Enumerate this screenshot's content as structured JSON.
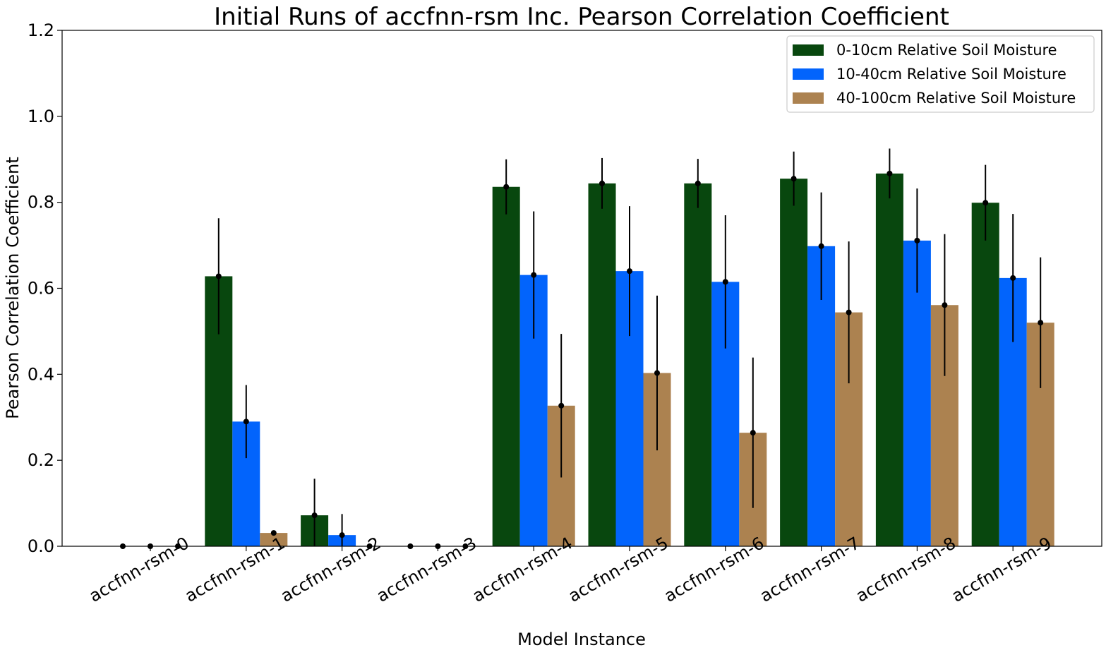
{
  "chart_data": {
    "type": "bar",
    "title": "Initial Runs of accfnn-rsm Inc. Pearson Correlation Coefficient",
    "xlabel": "Model Instance",
    "ylabel": "Pearson Correlation Coefficient",
    "ylim": [
      0,
      1.2
    ],
    "yticks": [
      "0.0",
      "0.2",
      "0.4",
      "0.6",
      "0.8",
      "1.0",
      "1.2"
    ],
    "categories": [
      "accfnn-rsm-0",
      "accfnn-rsm-1",
      "accfnn-rsm-2",
      "accfnn-rsm-3",
      "accfnn-rsm-4",
      "accfnn-rsm-5",
      "accfnn-rsm-6",
      "accfnn-rsm-7",
      "accfnn-rsm-8",
      "accfnn-rsm-9"
    ],
    "series": [
      {
        "name": "0-10cm Relative Soil Moisture",
        "color": "#08470e",
        "values": [
          0.0,
          0.628,
          0.072,
          0.0,
          0.836,
          0.844,
          0.844,
          0.855,
          0.867,
          0.799
        ],
        "errors": [
          0.0,
          0.135,
          0.085,
          0.0,
          0.064,
          0.059,
          0.057,
          0.063,
          0.058,
          0.088
        ]
      },
      {
        "name": "10-40cm Relative Soil Moisture",
        "color": "#0264fc",
        "values": [
          0.0,
          0.29,
          0.026,
          0.0,
          0.631,
          0.64,
          0.615,
          0.698,
          0.711,
          0.624
        ],
        "errors": [
          0.0,
          0.085,
          0.049,
          0.0,
          0.148,
          0.151,
          0.155,
          0.125,
          0.121,
          0.149
        ]
      },
      {
        "name": "40-100cm Relative Soil Moisture",
        "color": "#ac8250",
        "values": [
          0.0,
          0.031,
          0.0,
          0.0,
          0.327,
          0.403,
          0.264,
          0.544,
          0.561,
          0.52
        ],
        "errors": [
          0.0,
          0.0,
          0.0,
          0.0,
          0.167,
          0.18,
          0.175,
          0.165,
          0.165,
          0.152
        ]
      }
    ],
    "legend_position": "top-right",
    "grid": false,
    "error_bar_color": "#000000"
  }
}
